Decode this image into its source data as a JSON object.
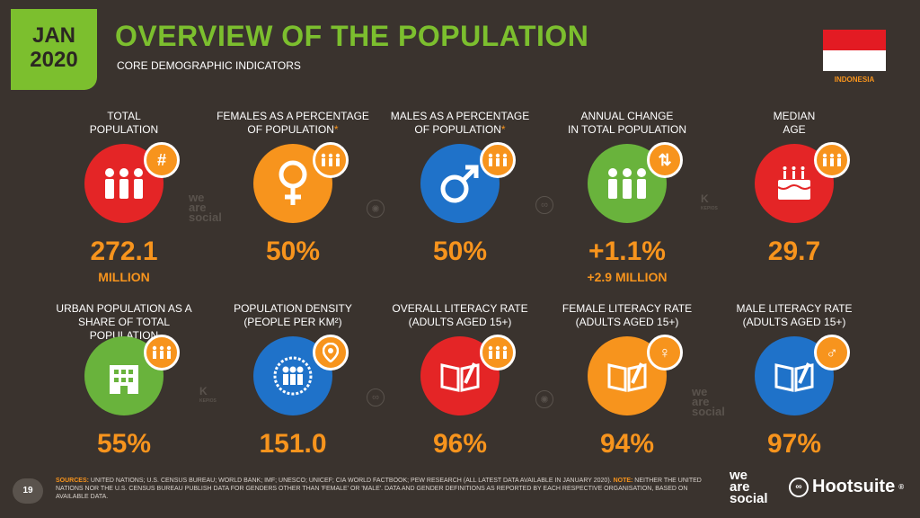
{
  "header": {
    "month": "JAN",
    "year": "2020",
    "title": "OVERVIEW OF THE POPULATION",
    "subtitle": "CORE DEMOGRAPHIC INDICATORS",
    "country": "INDONESIA"
  },
  "colors": {
    "green": "#7cbf2e",
    "orange": "#f7941d",
    "red": "#e42526",
    "blue": "#1f72c9",
    "background": "#3a332e"
  },
  "row1": [
    {
      "label1": "TOTAL",
      "label2": "POPULATION",
      "value": "272.1",
      "sub": "MILLION",
      "icon": "people-icon",
      "badge": "#",
      "color": "red"
    },
    {
      "label1": "FEMALES AS A PERCENTAGE",
      "label2": "OF POPULATION",
      "asterisk": "*",
      "value": "50%",
      "sub": "",
      "icon": "female-symbol-icon",
      "badge": "♟♟♟",
      "color": "orange"
    },
    {
      "label1": "MALES AS A PERCENTAGE",
      "label2": "OF POPULATION",
      "asterisk": "*",
      "value": "50%",
      "sub": "",
      "icon": "male-symbol-icon",
      "badge": "♟♟♟",
      "color": "blue"
    },
    {
      "label1": "ANNUAL CHANGE",
      "label2": "IN TOTAL POPULATION",
      "value": "+1.1%",
      "sub": "+2.9 MILLION",
      "icon": "people-icon",
      "badge": "⇅",
      "color": "green"
    },
    {
      "label1": "MEDIAN",
      "label2": "AGE",
      "value": "29.7",
      "sub": "",
      "icon": "birthday-cake-icon",
      "badge": "♟♟♟",
      "color": "red"
    }
  ],
  "row2": [
    {
      "label1": "URBAN POPULATION AS A",
      "label2": "SHARE OF TOTAL POPULATION",
      "value": "55%",
      "icon": "city-building-icon",
      "badge": "♟♟♟",
      "color": "green"
    },
    {
      "label1": "POPULATION DENSITY",
      "label2": "(PEOPLE PER KM²)",
      "value": "151.0",
      "icon": "crowd-icon",
      "badge": "⚲",
      "color": "blue"
    },
    {
      "label1": "OVERALL LITERACY RATE",
      "label2": "(ADULTS AGED 15+)",
      "value": "96%",
      "icon": "book-pen-icon",
      "badge": "♟♟♟",
      "color": "red"
    },
    {
      "label1": "FEMALE LITERACY RATE",
      "label2": "(ADULTS AGED 15+)",
      "value": "94%",
      "icon": "book-pen-icon",
      "badge": "♀",
      "color": "orange"
    },
    {
      "label1": "MALE LITERACY RATE",
      "label2": "(ADULTS AGED 15+)",
      "value": "97%",
      "icon": "book-pen-icon",
      "badge": "♂",
      "color": "blue"
    }
  ],
  "footer": {
    "page": "19",
    "sources_label": "SOURCES:",
    "sources_text": "UNITED NATIONS; U.S. CENSUS BUREAU; WORLD BANK; IMF; UNESCO; UNICEF; CIA WORLD FACTBOOK; PEW RESEARCH (ALL LATEST DATA AVAILABLE IN JANUARY 2020).",
    "note_label": "NOTE:",
    "note_text": "NEITHER THE UNITED NATIONS NOR THE U.S. CENSUS BUREAU PUBLISH DATA FOR GENDERS OTHER THAN 'FEMALE' OR 'MALE'. DATA AND GENDER DEFINITIONS AS REPORTED BY EACH RESPECTIVE ORGANISATION, BASED ON AVAILABLE DATA.",
    "brand1_l1": "we",
    "brand1_l2": "are",
    "brand1_l3": "social",
    "brand2": "Hootsuite",
    "brand2_mark": "®"
  },
  "watermarks": {
    "ws1": "we",
    "ws2": "are",
    "ws3": "social",
    "kepios": "KEPIOS"
  }
}
